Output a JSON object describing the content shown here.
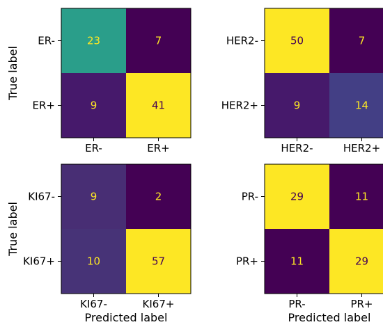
{
  "chart_data": [
    {
      "type": "heatmap",
      "row_labels": [
        "ER-",
        "ER+"
      ],
      "col_labels": [
        "ER-",
        "ER+"
      ],
      "values": [
        [
          23,
          7
        ],
        [
          9,
          41
        ]
      ],
      "cell_colors": [
        [
          "#2a9e8a",
          "#440154"
        ],
        [
          "#46196b",
          "#fde724"
        ]
      ],
      "text_colors": [
        [
          "#fde724",
          "#fde724"
        ],
        [
          "#fde724",
          "#440154"
        ]
      ],
      "ylabel": "True label",
      "xlabel": ""
    },
    {
      "type": "heatmap",
      "row_labels": [
        "HER2-",
        "HER2+"
      ],
      "col_labels": [
        "HER2-",
        "HER2+"
      ],
      "values": [
        [
          50,
          7
        ],
        [
          9,
          14
        ]
      ],
      "cell_colors": [
        [
          "#fde724",
          "#440154"
        ],
        [
          "#46196b",
          "#433f85"
        ]
      ],
      "text_colors": [
        [
          "#440154",
          "#fde724"
        ],
        [
          "#fde724",
          "#fde724"
        ]
      ],
      "ylabel": "",
      "xlabel": ""
    },
    {
      "type": "heatmap",
      "row_labels": [
        "KI67-",
        "KI67+"
      ],
      "col_labels": [
        "KI67-",
        "KI67+"
      ],
      "values": [
        [
          9,
          2
        ],
        [
          10,
          57
        ]
      ],
      "cell_colors": [
        [
          "#482e74",
          "#440154"
        ],
        [
          "#473377",
          "#fde724"
        ]
      ],
      "text_colors": [
        [
          "#fde724",
          "#fde724"
        ],
        [
          "#fde724",
          "#440154"
        ]
      ],
      "ylabel": "True label",
      "xlabel": "Predicted label"
    },
    {
      "type": "heatmap",
      "row_labels": [
        "PR-",
        "PR+"
      ],
      "col_labels": [
        "PR-",
        "PR+"
      ],
      "values": [
        [
          29,
          11
        ],
        [
          11,
          29
        ]
      ],
      "cell_colors": [
        [
          "#fde724",
          "#440154"
        ],
        [
          "#440154",
          "#fde724"
        ]
      ],
      "text_colors": [
        [
          "#440154",
          "#fde724"
        ],
        [
          "#fde724",
          "#440154"
        ]
      ],
      "ylabel": "",
      "xlabel": "Predicted label"
    }
  ]
}
